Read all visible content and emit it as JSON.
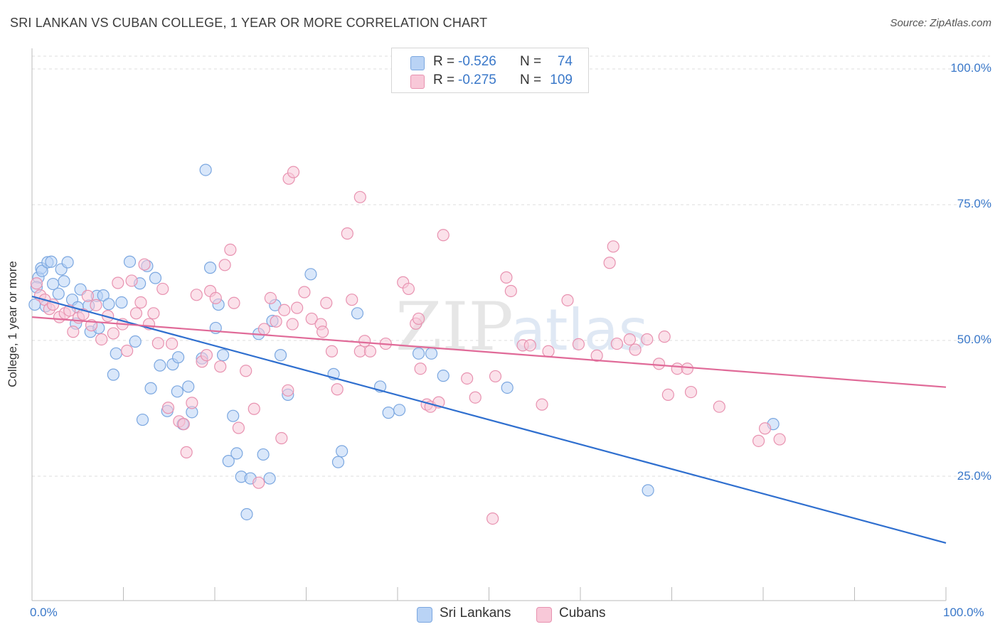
{
  "header": {
    "title": "SRI LANKAN VS CUBAN COLLEGE, 1 YEAR OR MORE CORRELATION CHART",
    "source": "Source: ZipAtlas.com"
  },
  "watermark": {
    "text_main": "ZIP",
    "text_sub": "atlas"
  },
  "colors": {
    "blue_fill": "#b9d3f5",
    "blue_stroke": "#7ba7e0",
    "blue_line": "#2f6fcf",
    "pink_fill": "#f8c8d8",
    "pink_stroke": "#e892b0",
    "pink_line": "#e06a98",
    "grid": "#dddddd",
    "tick_text": "#3a78c9"
  },
  "legend": {
    "rows": [
      {
        "r_label": "R =",
        "r_value": "-0.526",
        "n_label": "N =",
        "n_value": "74"
      },
      {
        "r_label": "R =",
        "r_value": "-0.275",
        "n_label": "N =",
        "n_value": "109"
      }
    ]
  },
  "bottom_legend": {
    "items": [
      "Sri Lankans",
      "Cubans"
    ]
  },
  "axes": {
    "ylabel": "College, 1 year or more",
    "y_ticks": [
      "100.0%",
      "75.0%",
      "50.0%",
      "25.0%"
    ],
    "x_ticks": [
      "0.0%",
      "100.0%"
    ]
  },
  "chart_data": {
    "type": "scatter",
    "title": "SRI LANKAN VS CUBAN COLLEGE, 1 YEAR OR MORE CORRELATION CHART",
    "xlabel": "",
    "ylabel": "College, 1 year or more",
    "xlim": [
      0,
      100
    ],
    "ylim": [
      0,
      100
    ],
    "x_ticks": [
      0,
      100
    ],
    "y_ticks": [
      25,
      50,
      75,
      100
    ],
    "grid": true,
    "legend_position": "top-center",
    "series": [
      {
        "name": "Sri Lankans",
        "color": "#b9d3f5",
        "line_color": "#2f6fcf",
        "r": -0.526,
        "n": 74,
        "trend": {
          "x": [
            0,
            100
          ],
          "y": [
            58.1,
            12.7
          ]
        },
        "points": [
          [
            0.3,
            56.6
          ],
          [
            0.7,
            61.6
          ],
          [
            1.0,
            63.3
          ],
          [
            1.1,
            62.8
          ],
          [
            1.7,
            64.4
          ],
          [
            2.1,
            64.5
          ],
          [
            2.3,
            60.4
          ],
          [
            2.9,
            58.6
          ],
          [
            3.2,
            63.1
          ],
          [
            3.5,
            60.9
          ],
          [
            3.9,
            64.4
          ],
          [
            4.4,
            57.5
          ],
          [
            5.0,
            56.1
          ],
          [
            5.3,
            59.4
          ],
          [
            6.2,
            56.4
          ],
          [
            6.4,
            51.6
          ],
          [
            7.1,
            58.2
          ],
          [
            7.3,
            52.3
          ],
          [
            7.8,
            58.3
          ],
          [
            8.4,
            56.7
          ],
          [
            8.9,
            43.7
          ],
          [
            9.2,
            47.6
          ],
          [
            10.7,
            64.5
          ],
          [
            11.3,
            49.8
          ],
          [
            11.8,
            60.5
          ],
          [
            12.1,
            35.4
          ],
          [
            12.6,
            63.7
          ],
          [
            13.0,
            41.2
          ],
          [
            13.5,
            61.5
          ],
          [
            14.0,
            45.4
          ],
          [
            14.8,
            37.0
          ],
          [
            15.4,
            45.6
          ],
          [
            16.0,
            46.9
          ],
          [
            16.5,
            34.6
          ],
          [
            17.1,
            41.5
          ],
          [
            17.5,
            36.8
          ],
          [
            18.6,
            46.7
          ],
          [
            19.0,
            81.4
          ],
          [
            19.5,
            63.4
          ],
          [
            20.1,
            52.3
          ],
          [
            20.4,
            56.6
          ],
          [
            20.9,
            47.3
          ],
          [
            21.5,
            27.8
          ],
          [
            22.0,
            36.1
          ],
          [
            22.4,
            29.2
          ],
          [
            22.9,
            24.9
          ],
          [
            23.5,
            18.0
          ],
          [
            23.9,
            24.6
          ],
          [
            24.8,
            51.2
          ],
          [
            25.3,
            29.0
          ],
          [
            26.0,
            24.6
          ],
          [
            26.6,
            56.5
          ],
          [
            27.2,
            47.3
          ],
          [
            28.0,
            40.0
          ],
          [
            30.5,
            62.2
          ],
          [
            33.0,
            43.8
          ],
          [
            33.5,
            27.6
          ],
          [
            33.9,
            29.6
          ],
          [
            35.6,
            55.0
          ],
          [
            38.1,
            41.5
          ],
          [
            39.0,
            36.7
          ],
          [
            40.2,
            37.2
          ],
          [
            42.3,
            47.6
          ],
          [
            43.7,
            47.6
          ],
          [
            45.0,
            43.5
          ],
          [
            52.0,
            41.3
          ],
          [
            67.4,
            22.4
          ],
          [
            81.1,
            34.6
          ],
          [
            0.5,
            59.8
          ],
          [
            1.5,
            56.3
          ],
          [
            4.8,
            53.1
          ],
          [
            9.8,
            57.0
          ],
          [
            15.9,
            40.6
          ],
          [
            26.3,
            53.6
          ]
        ]
      },
      {
        "name": "Cubans",
        "color": "#f8c8d8",
        "line_color": "#e06a98",
        "r": -0.275,
        "n": 109,
        "trend": {
          "x": [
            0,
            100
          ],
          "y": [
            54.3,
            41.4
          ]
        },
        "points": [
          [
            0.5,
            60.5
          ],
          [
            0.9,
            58.3
          ],
          [
            1.4,
            57.5
          ],
          [
            1.9,
            55.8
          ],
          [
            2.3,
            56.6
          ],
          [
            3.0,
            54.3
          ],
          [
            3.6,
            55.0
          ],
          [
            4.1,
            55.5
          ],
          [
            4.5,
            51.6
          ],
          [
            5.1,
            54.2
          ],
          [
            5.6,
            54.8
          ],
          [
            6.1,
            58.2
          ],
          [
            6.5,
            52.8
          ],
          [
            7.0,
            56.5
          ],
          [
            7.6,
            50.2
          ],
          [
            8.3,
            54.5
          ],
          [
            8.9,
            51.3
          ],
          [
            9.4,
            60.6
          ],
          [
            9.9,
            53.0
          ],
          [
            10.4,
            48.1
          ],
          [
            10.9,
            61.0
          ],
          [
            11.4,
            55.0
          ],
          [
            11.9,
            57.0
          ],
          [
            12.3,
            64.0
          ],
          [
            12.8,
            53.0
          ],
          [
            13.3,
            55.0
          ],
          [
            13.8,
            49.5
          ],
          [
            14.3,
            59.5
          ],
          [
            14.9,
            37.6
          ],
          [
            15.3,
            49.4
          ],
          [
            16.1,
            35.1
          ],
          [
            16.6,
            34.6
          ],
          [
            16.9,
            29.4
          ],
          [
            17.5,
            38.5
          ],
          [
            18.0,
            58.4
          ],
          [
            18.6,
            46.1
          ],
          [
            19.1,
            47.3
          ],
          [
            19.5,
            59.1
          ],
          [
            20.1,
            57.8
          ],
          [
            20.6,
            45.2
          ],
          [
            21.1,
            63.9
          ],
          [
            21.7,
            66.7
          ],
          [
            22.1,
            56.9
          ],
          [
            22.6,
            33.9
          ],
          [
            23.4,
            44.4
          ],
          [
            24.3,
            37.4
          ],
          [
            24.8,
            23.8
          ],
          [
            25.4,
            52.1
          ],
          [
            26.1,
            57.8
          ],
          [
            26.7,
            53.5
          ],
          [
            27.3,
            32.0
          ],
          [
            27.6,
            55.6
          ],
          [
            28.0,
            40.8
          ],
          [
            28.5,
            53.0
          ],
          [
            29.0,
            56.0
          ],
          [
            29.8,
            58.9
          ],
          [
            30.6,
            54.0
          ],
          [
            31.6,
            53.0
          ],
          [
            31.8,
            51.6
          ],
          [
            32.2,
            56.9
          ],
          [
            32.8,
            48.0
          ],
          [
            33.4,
            41.0
          ],
          [
            34.5,
            69.7
          ],
          [
            35.0,
            57.5
          ],
          [
            35.9,
            48.0
          ],
          [
            36.4,
            49.9
          ],
          [
            37.0,
            48.0
          ],
          [
            38.7,
            49.4
          ],
          [
            40.6,
            60.7
          ],
          [
            41.2,
            59.5
          ],
          [
            42.0,
            53.1
          ],
          [
            42.3,
            54.0
          ],
          [
            42.5,
            44.8
          ],
          [
            43.2,
            38.2
          ],
          [
            43.6,
            37.8
          ],
          [
            44.5,
            38.6
          ],
          [
            45.0,
            69.4
          ],
          [
            47.6,
            43.0
          ],
          [
            48.5,
            39.5
          ],
          [
            50.7,
            43.4
          ],
          [
            51.9,
            61.6
          ],
          [
            52.4,
            59.1
          ],
          [
            53.7,
            49.1
          ],
          [
            54.5,
            49.1
          ],
          [
            55.8,
            38.2
          ],
          [
            56.5,
            48.0
          ],
          [
            58.6,
            57.4
          ],
          [
            59.8,
            49.3
          ],
          [
            61.8,
            47.2
          ],
          [
            63.2,
            64.3
          ],
          [
            63.6,
            67.3
          ],
          [
            64.0,
            49.4
          ],
          [
            65.4,
            50.2
          ],
          [
            66.0,
            48.3
          ],
          [
            67.3,
            50.2
          ],
          [
            68.6,
            45.7
          ],
          [
            69.2,
            50.7
          ],
          [
            69.6,
            40.0
          ],
          [
            70.6,
            44.8
          ],
          [
            71.7,
            44.8
          ],
          [
            72.1,
            40.5
          ],
          [
            75.2,
            37.8
          ],
          [
            79.5,
            31.5
          ],
          [
            80.2,
            33.8
          ],
          [
            81.8,
            31.8
          ],
          [
            28.1,
            79.8
          ],
          [
            28.6,
            81.0
          ],
          [
            35.9,
            76.4
          ],
          [
            50.4,
            17.2
          ]
        ]
      }
    ]
  }
}
